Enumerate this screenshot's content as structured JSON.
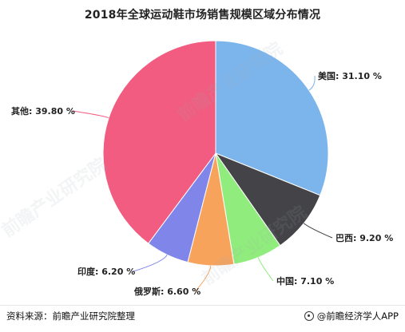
{
  "title": "2018年全球运动鞋市场销售规模区域分布情况",
  "chart_data": {
    "type": "pie",
    "title": "2018年全球运动鞋市场销售规模区域分布情况",
    "unit": "%",
    "slices": [
      {
        "label": "美国",
        "value": 31.1,
        "color": "#7cb5ec",
        "display": "美国: 31.10 %"
      },
      {
        "label": "巴西",
        "value": 9.2,
        "color": "#434348",
        "display": "巴西: 9.20 %"
      },
      {
        "label": "中国",
        "value": 7.1,
        "color": "#90ed7d",
        "display": "中国: 7.10 %"
      },
      {
        "label": "俄罗斯",
        "value": 6.6,
        "color": "#f7a35c",
        "display": "俄罗斯: 6.60 %"
      },
      {
        "label": "印度",
        "value": 6.2,
        "color": "#8085e9",
        "display": "印度: 6.20 %"
      },
      {
        "label": "其他",
        "value": 39.8,
        "color": "#f15c80",
        "display": "其他: 39.80 %"
      }
    ]
  },
  "footer": {
    "source": "资料来源：前瞻产业研究院整理",
    "brand": "@前瞻经济学人APP"
  },
  "watermark_text": "前瞻产业研究院"
}
